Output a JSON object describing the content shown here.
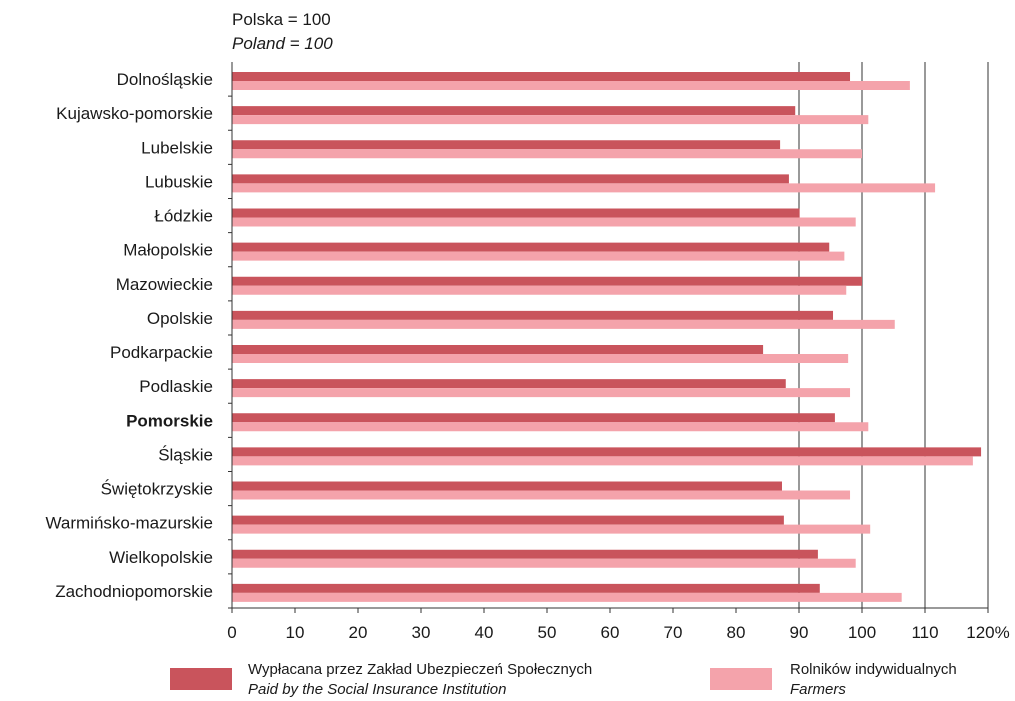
{
  "unit_label": {
    "pl": "Polska = 100",
    "en": "Poland = 100"
  },
  "legend": [
    {
      "pl": "Wypłacana przez Zakład Ubezpieczeń Społecznych",
      "en": "Paid by the Social Insurance Institution",
      "color": "#c9545c"
    },
    {
      "pl": "Rolników indywidualnych",
      "en": "Farmers",
      "color": "#f4a3ab"
    }
  ],
  "chart_data": {
    "type": "bar",
    "orientation": "horizontal",
    "categories": [
      "Dolnośląskie",
      "Kujawsko-pomorskie",
      "Lubelskie",
      "Lubuskie",
      "Łódzkie",
      "Małopolskie",
      "Mazowieckie",
      "Opolskie",
      "Podkarpackie",
      "Podlaskie",
      "Pomorskie",
      "Śląskie",
      "Świętokrzyskie",
      "Warmińsko-mazurskie",
      "Wielkopolskie",
      "Zachodniopomorskie"
    ],
    "highlighted_category": "Pomorskie",
    "series": [
      {
        "name": "Wypłacana przez Zakład Ubezpieczeń Społecznych",
        "color": "#c9545c",
        "values": [
          98.1,
          89.4,
          87.0,
          88.4,
          90.1,
          94.8,
          100.0,
          95.4,
          84.3,
          87.9,
          95.7,
          118.9,
          87.3,
          87.6,
          93.0,
          93.3
        ]
      },
      {
        "name": "Rolników indywidualnych",
        "color": "#f4a3ab",
        "values": [
          107.6,
          101.0,
          100.0,
          111.6,
          99.0,
          97.2,
          97.5,
          105.2,
          97.8,
          98.1,
          101.0,
          117.6,
          98.1,
          101.3,
          99.0,
          106.3
        ]
      }
    ],
    "xlim": [
      0,
      120
    ],
    "x_ticks": [
      "0",
      "10",
      "20",
      "30",
      "40",
      "50",
      "60",
      "70",
      "80",
      "90",
      "100",
      "110",
      "120%"
    ],
    "grid": {
      "vertical_at": [
        90,
        100,
        110,
        120
      ]
    }
  }
}
